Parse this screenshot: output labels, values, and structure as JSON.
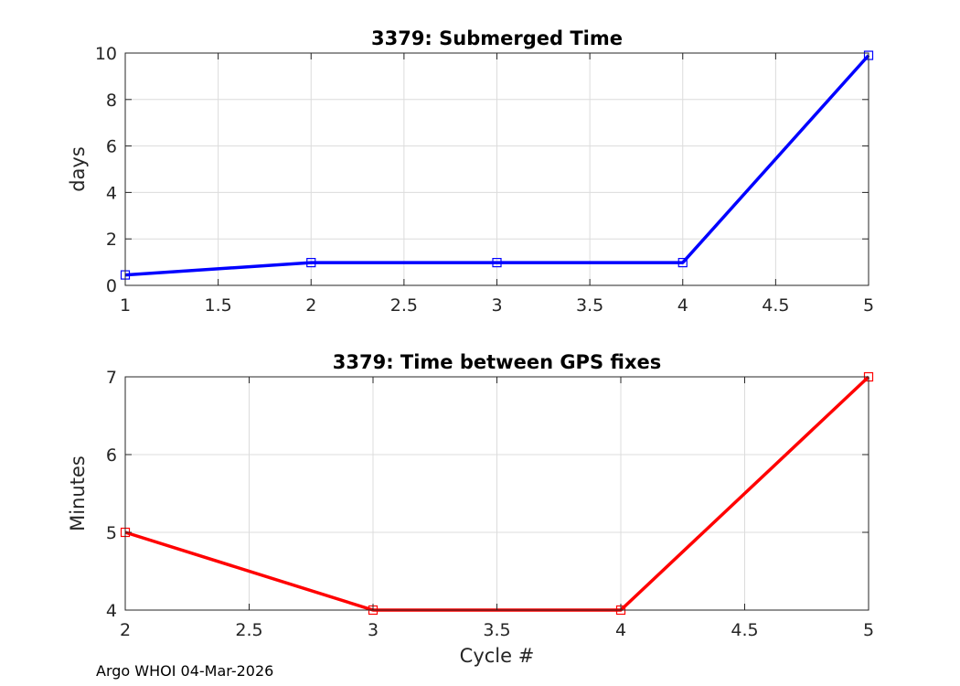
{
  "chart_data": [
    {
      "type": "line",
      "title": "3379: Submerged Time",
      "xlabel": "",
      "ylabel": "days",
      "xlim": [
        1,
        5
      ],
      "ylim": [
        0,
        10
      ],
      "xticks": [
        1,
        1.5,
        2,
        2.5,
        3,
        3.5,
        4,
        4.5,
        5
      ],
      "yticks": [
        0,
        2,
        4,
        6,
        8,
        10
      ],
      "grid": true,
      "marker": "square",
      "series": [
        {
          "color": "#0000ff",
          "x": [
            1,
            2,
            3,
            4,
            5
          ],
          "y": [
            0.45,
            0.98,
            0.98,
            0.98,
            9.9
          ]
        }
      ]
    },
    {
      "type": "line",
      "title": "3379: Time between GPS fixes",
      "xlabel": "Cycle #",
      "ylabel": "Minutes",
      "xlim": [
        2,
        5
      ],
      "ylim": [
        4,
        7
      ],
      "xticks": [
        2,
        2.5,
        3,
        3.5,
        4,
        4.5,
        5
      ],
      "yticks": [
        4,
        5,
        6,
        7
      ],
      "grid": true,
      "marker": "square",
      "series": [
        {
          "color": "#ff0000",
          "x": [
            2,
            3,
            4,
            5
          ],
          "y": [
            5,
            4,
            4,
            7
          ]
        }
      ]
    }
  ],
  "footer": "Argo WHOI 04-Mar-2026"
}
